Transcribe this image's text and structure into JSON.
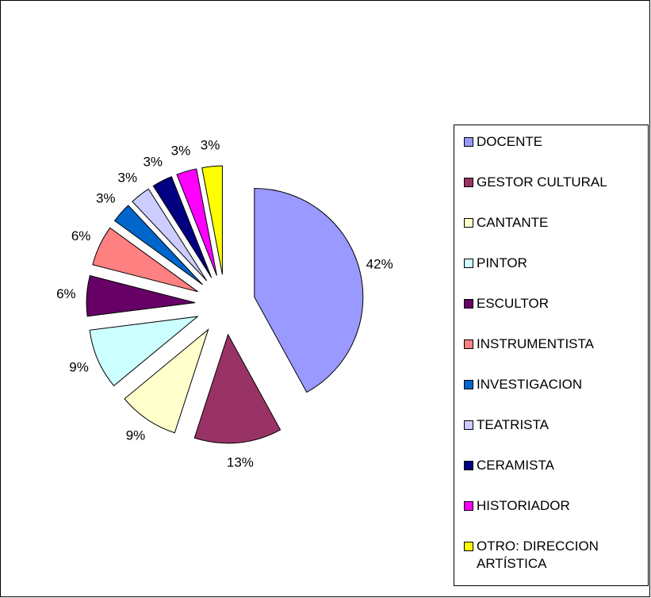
{
  "chart_data": {
    "type": "pie",
    "categories": [
      "DOCENTE",
      "GESTOR CULTURAL",
      "CANTANTE",
      "PINTOR",
      "ESCULTOR",
      "INSTRUMENTISTA",
      "INVESTIGACION",
      "TEATRISTA",
      "CERAMISTA",
      "HISTORIADOR",
      "OTRO: DIRECCION ARTÍSTICA"
    ],
    "values": [
      42,
      13,
      9,
      9,
      6,
      6,
      3,
      3,
      3,
      3,
      3
    ],
    "value_labels": [
      "42%",
      "13%",
      "9%",
      "9%",
      "6%",
      "6%",
      "3%",
      "3%",
      "3%",
      "3%",
      "3%"
    ],
    "colors": [
      "#9999ff",
      "#993366",
      "#ffffcc",
      "#ccffff",
      "#660066",
      "#ff8080",
      "#0066cc",
      "#ccccff",
      "#000080",
      "#ff00ff",
      "#ffff00"
    ],
    "legend": "right"
  }
}
